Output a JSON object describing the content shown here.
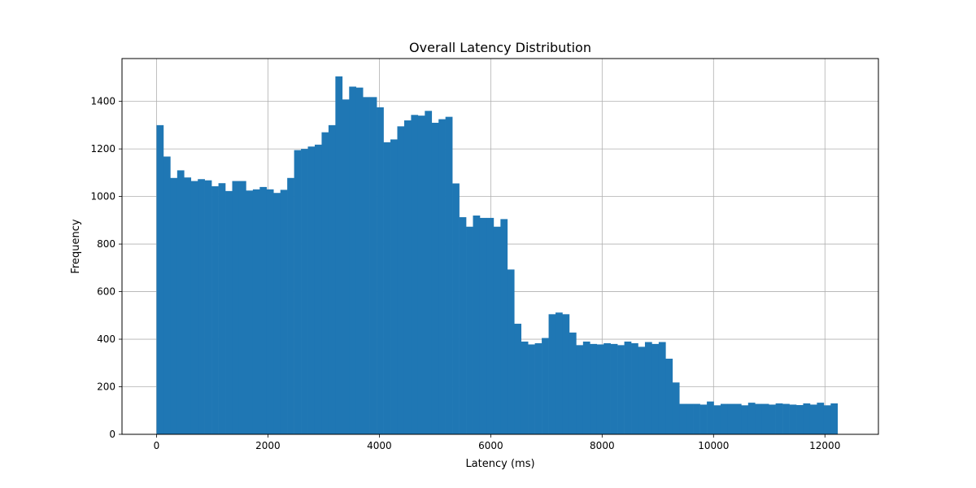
{
  "chart_data": {
    "type": "bar",
    "title": "Overall Latency Distribution",
    "xlabel": "Latency (ms)",
    "ylabel": "Frequency",
    "xlim": [
      -620,
      12960
    ],
    "ylim": [
      0,
      1580
    ],
    "xticks": [
      0,
      2000,
      4000,
      6000,
      8000,
      10000,
      12000
    ],
    "yticks": [
      0,
      200,
      400,
      600,
      800,
      1000,
      1200,
      1400
    ],
    "grid": true,
    "bar_color": "#1f77b4",
    "bins": {
      "start": 0,
      "width": 123.5,
      "counts": [
        1300,
        1168,
        1078,
        1110,
        1080,
        1065,
        1073,
        1068,
        1043,
        1056,
        1023,
        1065,
        1065,
        1025,
        1030,
        1040,
        1030,
        1015,
        1028,
        1078,
        1195,
        1200,
        1210,
        1218,
        1270,
        1300,
        1505,
        1408,
        1462,
        1458,
        1418,
        1418,
        1375,
        1228,
        1240,
        1295,
        1320,
        1343,
        1340,
        1360,
        1310,
        1325,
        1335,
        1055,
        913,
        873,
        920,
        910,
        910,
        873,
        905,
        693,
        465,
        390,
        378,
        383,
        405,
        505,
        512,
        505,
        428,
        375,
        390,
        380,
        378,
        383,
        380,
        375,
        390,
        383,
        368,
        388,
        380,
        388,
        318,
        218,
        128,
        128,
        128,
        125,
        138,
        122,
        128,
        128,
        128,
        122,
        133,
        128,
        128,
        125,
        130,
        128,
        125,
        123,
        130,
        125,
        133,
        122,
        130
      ]
    }
  }
}
